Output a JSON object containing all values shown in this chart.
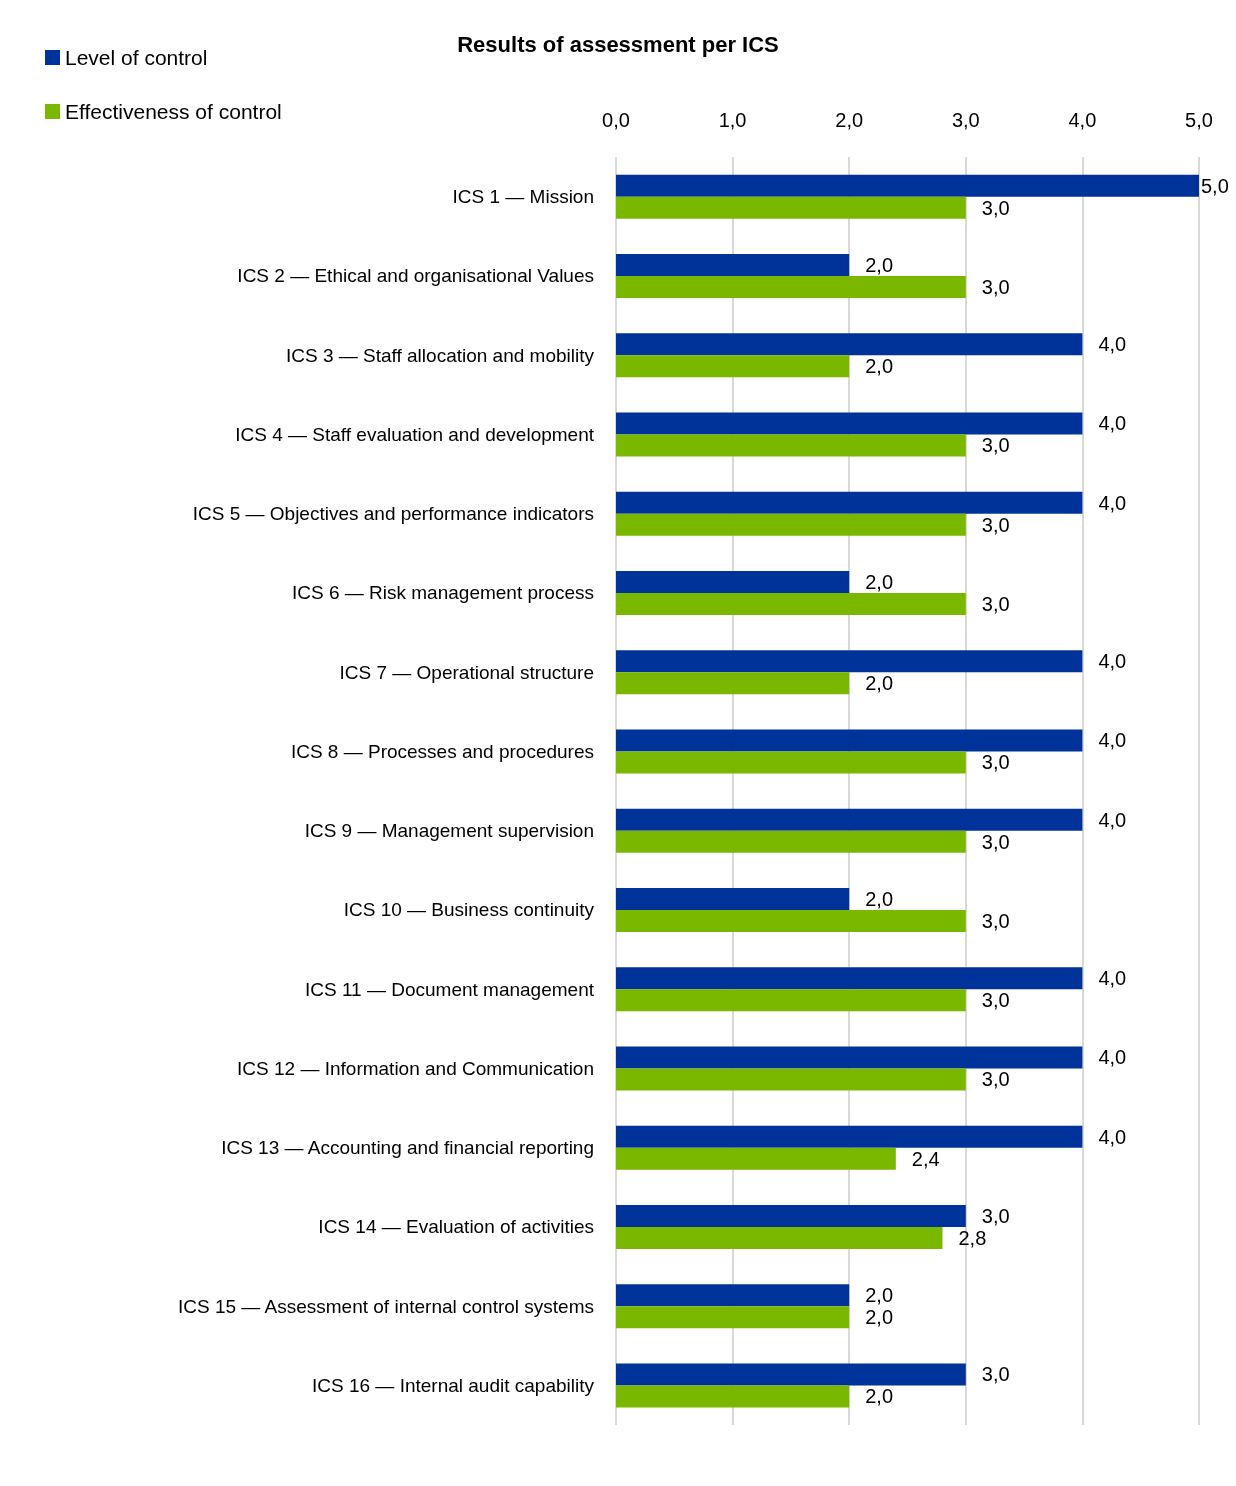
{
  "chart_data": {
    "type": "bar",
    "orientation": "horizontal",
    "title": "Results of assessment per ICS",
    "categories": [
      "ICS 1 — Mission",
      "ICS 2 — Ethical and organisational Values",
      "ICS 3 — Staff allocation and mobility",
      "ICS 4 — Staff evaluation and development",
      "ICS 5 — Objectives and performance indicators",
      "ICS 6 — Risk management process",
      "ICS 7 — Operational structure",
      "ICS 8 — Processes and procedures",
      "ICS 9 — Management supervision",
      "ICS 10 — Business continuity",
      "ICS 11 — Document management",
      "ICS 12 — Information and Communication",
      "ICS 13 — Accounting and financial reporting",
      "ICS 14 — Evaluation of activities",
      "ICS 15 — Assessment of internal control systems",
      "ICS 16 — Internal audit capability"
    ],
    "series": [
      {
        "name": "Level of control",
        "color": "#003399",
        "values": [
          5,
          2,
          4,
          4,
          4,
          2,
          4,
          4,
          4,
          2,
          4,
          4,
          4,
          3,
          2,
          3
        ],
        "value_labels": [
          "5,0",
          "2,0",
          "4,0",
          "4,0",
          "4,0",
          "2,0",
          "4,0",
          "4,0",
          "4,0",
          "2,0",
          "4,0",
          "4,0",
          "4,0",
          "3,0",
          "2,0",
          "3,0"
        ]
      },
      {
        "name": "Effectiveness of control",
        "color": "#7ab800",
        "values": [
          3,
          3,
          2,
          3,
          3,
          3,
          2,
          3,
          3,
          3,
          3,
          3,
          2.4,
          2.8,
          2,
          2
        ],
        "value_labels": [
          "3,0",
          "3,0",
          "2,0",
          "3,0",
          "3,0",
          "3,0",
          "2,0",
          "3,0",
          "3,0",
          "3,0",
          "3,0",
          "3,0",
          "2,4",
          "2,8",
          "2,0",
          "2,0"
        ]
      }
    ],
    "xlim": [
      0,
      5
    ],
    "xticks": [
      {
        "value": 0,
        "label": "0,0"
      },
      {
        "value": 1,
        "label": "1,0"
      },
      {
        "value": 2,
        "label": "2,0"
      },
      {
        "value": 3,
        "label": "3,0"
      },
      {
        "value": 4,
        "label": "4,0"
      },
      {
        "value": 5,
        "label": "5,0"
      }
    ],
    "grid": "x",
    "legend": "top left"
  }
}
